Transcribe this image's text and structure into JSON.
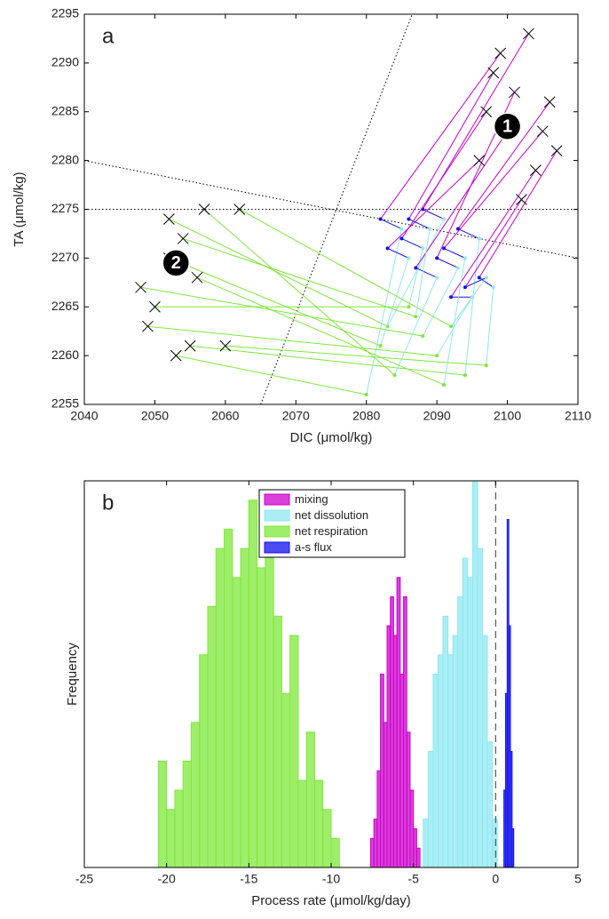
{
  "chart_data": [
    {
      "type": "vector",
      "panel_label": "a",
      "xlabel": "DIC (μmol/kg)",
      "ylabel": "TA (μmol/kg)",
      "xlim": [
        2040,
        2110
      ],
      "ylim": [
        2255,
        2295
      ],
      "xticks": [
        2040,
        2050,
        2060,
        2070,
        2080,
        2090,
        2100,
        2110
      ],
      "yticks": [
        2255,
        2260,
        2265,
        2270,
        2275,
        2280,
        2285,
        2290,
        2295
      ],
      "segment_colors": [
        "#cc00cc",
        "#1010ee",
        "#8ee8f2",
        "#7fe83a"
      ],
      "ref_lines": [
        {
          "x": [
            2040,
            2110
          ],
          "y": [
            2275,
            2275
          ]
        },
        {
          "x": [
            2040,
            2110
          ],
          "y": [
            2280,
            2270
          ]
        },
        {
          "x": [
            2065,
            2086.5
          ],
          "y": [
            2255,
            2295
          ]
        }
      ],
      "annotations": [
        {
          "text": "1",
          "x": 2100,
          "y": 2283.5
        },
        {
          "text": "2",
          "x": 2053,
          "y": 2269.5
        }
      ],
      "paths": [
        {
          "x": [
            2103,
            2088,
            2091,
            2083,
            2052
          ],
          "y": [
            2293,
            2275,
            2274,
            2263,
            2274
          ]
        },
        {
          "x": [
            2106,
            2093,
            2096,
            2094,
            2055
          ],
          "y": [
            2286,
            2273,
            2272,
            2258,
            2261
          ]
        },
        {
          "x": [
            2099,
            2082,
            2085,
            2080,
            2053
          ],
          "y": [
            2291,
            2274,
            2273,
            2256,
            2260
          ]
        },
        {
          "x": [
            2101,
            2090,
            2093,
            2088,
            2048
          ],
          "y": [
            2287,
            2270,
            2269,
            2262,
            2267
          ]
        },
        {
          "x": [
            2107,
            2096,
            2098,
            2097,
            2060
          ],
          "y": [
            2281,
            2268,
            2267,
            2259,
            2261
          ]
        },
        {
          "x": [
            2097,
            2085,
            2088,
            2086,
            2050
          ],
          "y": [
            2285,
            2272,
            2271,
            2265,
            2265
          ]
        },
        {
          "x": [
            2104,
            2092,
            2095,
            2090,
            2049
          ],
          "y": [
            2279,
            2266,
            2266,
            2260,
            2263
          ]
        },
        {
          "x": [
            2100,
            2087,
            2090,
            2084,
            2057
          ],
          "y": [
            2283,
            2269,
            2268,
            2258,
            2275
          ]
        },
        {
          "x": [
            2096,
            2083,
            2086,
            2082,
            2052
          ],
          "y": [
            2280,
            2271,
            2270,
            2261,
            2270
          ]
        },
        {
          "x": [
            2102,
            2094,
            2097,
            2092,
            2062
          ],
          "y": [
            2276,
            2267,
            2268,
            2263,
            2275
          ]
        },
        {
          "x": [
            2098,
            2086,
            2089,
            2087,
            2054
          ],
          "y": [
            2289,
            2274,
            2273,
            2264,
            2272
          ]
        },
        {
          "x": [
            2105,
            2091,
            2094,
            2091,
            2056
          ],
          "y": [
            2283,
            2271,
            2270,
            2257,
            2268
          ]
        }
      ]
    },
    {
      "type": "histogram",
      "panel_label": "b",
      "xlabel": "Process rate (μmol/kg/day)",
      "ylabel": "Frequency",
      "xlim": [
        -25,
        5
      ],
      "ylim": [
        0,
        40
      ],
      "xticks": [
        -25,
        -20,
        -15,
        -10,
        -5,
        0,
        5
      ],
      "vline": 0,
      "series": [
        {
          "name": "mixing",
          "color": "#cc00cc",
          "bins": [
            -7.6,
            -7.4,
            -7.2,
            -7.0,
            -6.8,
            -6.6,
            -6.4,
            -6.2,
            -6.0,
            -5.8,
            -5.6,
            -5.4,
            -5.2,
            -5.0,
            -4.8,
            -4.6
          ],
          "values": [
            3,
            5,
            10,
            20,
            15,
            25,
            28,
            24,
            30,
            20,
            28,
            14,
            8,
            4,
            2
          ]
        },
        {
          "name": "net dissolution",
          "color": "#8ee8f2",
          "bins": [
            -4.4,
            -4.1,
            -3.8,
            -3.5,
            -3.2,
            -2.9,
            -2.6,
            -2.3,
            -2.0,
            -1.7,
            -1.4,
            -1.1,
            -0.8,
            -0.5,
            -0.2,
            0.1
          ],
          "values": [
            5,
            12,
            20,
            22,
            26,
            22,
            24,
            28,
            32,
            30,
            40,
            33,
            24,
            13,
            5
          ]
        },
        {
          "name": "net respiration",
          "color": "#7fe83a",
          "bins": [
            -20.5,
            -20,
            -19.5,
            -19,
            -18.5,
            -18,
            -17.5,
            -17,
            -16.5,
            -16,
            -15.5,
            -15,
            -14.5,
            -14,
            -13.5,
            -13,
            -12.5,
            -12,
            -11.5,
            -11,
            -10.5,
            -10,
            -9.5
          ],
          "values": [
            11,
            6,
            8,
            11,
            15,
            22,
            27,
            33,
            35,
            30,
            33,
            38,
            31,
            35,
            26,
            18,
            24,
            9,
            14,
            9,
            6,
            3
          ]
        },
        {
          "name": "a-s flux",
          "color": "#1010ee",
          "bins": [
            0.5,
            0.6,
            0.7,
            0.8,
            0.9,
            1.0,
            1.1
          ],
          "values": [
            8,
            18,
            36,
            25,
            12,
            4
          ]
        }
      ]
    }
  ]
}
